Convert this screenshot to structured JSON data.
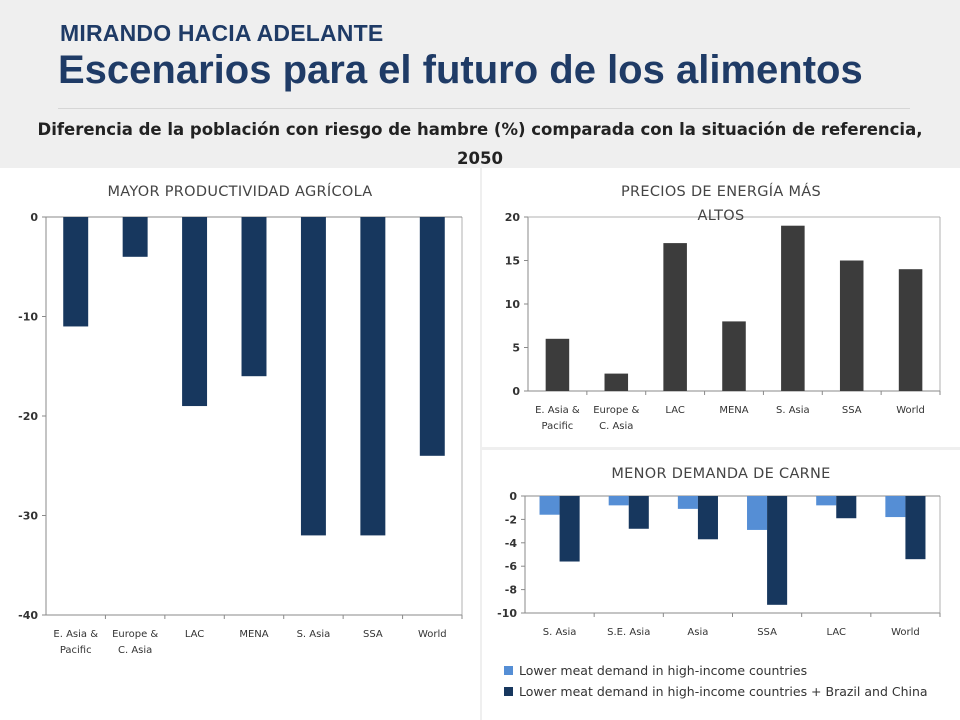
{
  "header": {
    "overline": "MIRANDO HACIA ADELANTE",
    "title": "Escenarios para el futuro de los alimentos",
    "subtitle_line1": "Diferencia de la población con riesgo de hambre (%) comparada con la situación de referencia,",
    "subtitle_line2": "2050"
  },
  "chart_data": [
    {
      "type": "bar",
      "title": "MAYOR PRODUCTIVIDAD AGRÍCOLA",
      "categories": [
        "E. Asia & Pacific",
        "Europe & C. Asia",
        "LAC",
        "MENA",
        "S. Asia",
        "SSA",
        "World"
      ],
      "category_lines": [
        [
          "E. Asia &",
          "Pacific"
        ],
        [
          "Europe &",
          "C. Asia"
        ],
        [
          "LAC"
        ],
        [
          "MENA"
        ],
        [
          "S. Asia"
        ],
        [
          "SSA"
        ],
        [
          "World"
        ]
      ],
      "values": [
        -11,
        -4,
        -19,
        -16,
        -32,
        -32,
        -24
      ],
      "ylim": [
        -40,
        0
      ],
      "yticks": [
        0,
        -10,
        -20,
        -30,
        -40
      ],
      "xlabel": "",
      "ylabel": "",
      "color": "#17375e",
      "grid": false
    },
    {
      "type": "bar",
      "title_lines": [
        "PRECIOS DE ENERGÍA MÁS",
        "ALTOS"
      ],
      "categories": [
        "E. Asia & Pacific",
        "Europe & C. Asia",
        "LAC",
        "MENA",
        "S. Asia",
        "SSA",
        "World"
      ],
      "category_lines": [
        [
          "E. Asia &",
          "Pacific"
        ],
        [
          "Europe &",
          "C. Asia"
        ],
        [
          "LAC"
        ],
        [
          "MENA"
        ],
        [
          "S. Asia"
        ],
        [
          "SSA"
        ],
        [
          "World"
        ]
      ],
      "values": [
        6,
        2,
        17,
        8,
        19,
        15,
        14
      ],
      "ylim": [
        0,
        20
      ],
      "yticks": [
        20,
        15,
        10,
        5,
        0
      ],
      "xlabel": "",
      "ylabel": "",
      "color": "#3c3c3c",
      "grid": false
    },
    {
      "type": "bar",
      "title": "MENOR DEMANDA DE CARNE",
      "categories": [
        "S. Asia",
        "S.E. Asia",
        "Asia",
        "SSA",
        "LAC",
        "World"
      ],
      "series": [
        {
          "name": "Lower meat demand in high-income countries",
          "values": [
            -1.6,
            -0.8,
            -1.1,
            -2.9,
            -0.8,
            -1.8
          ],
          "color": "#558ed5"
        },
        {
          "name": "Lower meat demand in high-income countries + Brazil and China",
          "values": [
            -5.6,
            -2.8,
            -3.7,
            -9.3,
            -1.9,
            -5.4
          ],
          "color": "#17375e"
        }
      ],
      "ylim": [
        -10,
        0
      ],
      "yticks": [
        0,
        -2,
        -4,
        -6,
        -8,
        -10
      ],
      "xlabel": "",
      "ylabel": "",
      "legend": "bottom",
      "grid": false
    }
  ]
}
